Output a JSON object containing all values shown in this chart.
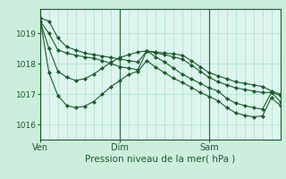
{
  "bg_color": "#cceedd",
  "plot_bg_color": "#ddf5ee",
  "grid_color": "#aaddcc",
  "line_color": "#1a5c2a",
  "marker_color": "#1a5c2a",
  "xlabel": "Pression niveau de la mer( hPa )",
  "ylim": [
    1015.5,
    1019.8
  ],
  "yticks": [
    1016,
    1017,
    1018,
    1019
  ],
  "xtick_labels": [
    "Ven",
    "Dim",
    "Sam"
  ],
  "vline_color": "#2d7040",
  "tick_color": "#1a5c2a",
  "axis_color": "#1a5c2a",
  "series": [
    [
      1019.5,
      1019.4,
      1018.85,
      1018.55,
      1018.45,
      1018.35,
      1018.3,
      1018.25,
      1018.2,
      1018.15,
      1018.1,
      1018.05,
      1018.42,
      1018.38,
      1018.35,
      1018.32,
      1018.28,
      1018.1,
      1017.9,
      1017.7,
      1017.6,
      1017.5,
      1017.4,
      1017.35,
      1017.3,
      1017.25,
      1017.1,
      1017.0
    ],
    [
      1019.4,
      1019.0,
      1018.45,
      1018.35,
      1018.28,
      1018.22,
      1018.18,
      1018.1,
      1018.0,
      1017.9,
      1017.85,
      1017.8,
      1018.42,
      1018.35,
      1018.3,
      1018.22,
      1018.15,
      1017.95,
      1017.75,
      1017.55,
      1017.4,
      1017.3,
      1017.2,
      1017.15,
      1017.1,
      1017.05,
      1017.05,
      1016.95
    ],
    [
      1019.4,
      1018.5,
      1017.75,
      1017.55,
      1017.45,
      1017.5,
      1017.65,
      1017.85,
      1018.05,
      1018.2,
      1018.3,
      1018.38,
      1018.42,
      1018.22,
      1018.05,
      1017.85,
      1017.65,
      1017.5,
      1017.35,
      1017.2,
      1017.1,
      1016.85,
      1016.7,
      1016.62,
      1016.55,
      1016.5,
      1017.05,
      1016.75
    ],
    [
      1019.5,
      1017.7,
      1016.95,
      1016.62,
      1016.55,
      1016.6,
      1016.75,
      1017.0,
      1017.25,
      1017.45,
      1017.65,
      1017.75,
      1018.1,
      1017.88,
      1017.7,
      1017.52,
      1017.38,
      1017.22,
      1017.05,
      1016.92,
      1016.78,
      1016.55,
      1016.38,
      1016.3,
      1016.25,
      1016.28,
      1016.88,
      1016.62
    ]
  ],
  "xtick_indices": [
    0,
    9,
    19
  ],
  "n_points": 28,
  "vline_indices": [
    0,
    9,
    19
  ]
}
